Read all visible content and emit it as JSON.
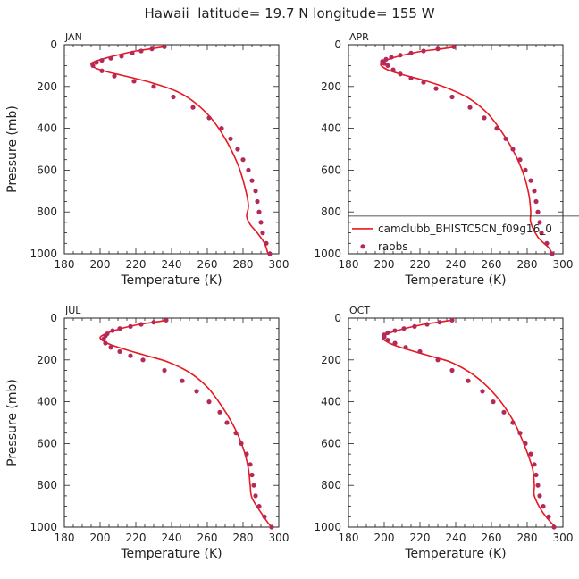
{
  "title": "Hawaii  latitude= 19.7 N longitude= 155 W",
  "colors": {
    "model": "#e8191f",
    "obs": "#b5285a"
  },
  "chart_data": [
    {
      "type": "line+scatter",
      "panel": "JAN",
      "xlabel": "Temperature (K)",
      "ylabel": "Pressure (mb)",
      "xlim": [
        180,
        300
      ],
      "ylim": [
        1000,
        0
      ],
      "xticks": [
        180,
        200,
        220,
        240,
        260,
        280,
        300
      ],
      "yticks": [
        0,
        200,
        400,
        600,
        800,
        1000
      ],
      "model": [
        [
          236,
          10
        ],
        [
          228,
          20
        ],
        [
          220,
          30
        ],
        [
          212,
          45
        ],
        [
          205,
          60
        ],
        [
          199,
          75
        ],
        [
          195,
          90
        ],
        [
          197,
          110
        ],
        [
          204,
          130
        ],
        [
          214,
          150
        ],
        [
          228,
          180
        ],
        [
          242,
          220
        ],
        [
          252,
          270
        ],
        [
          262,
          350
        ],
        [
          270,
          450
        ],
        [
          277,
          570
        ],
        [
          281,
          680
        ],
        [
          283,
          770
        ],
        [
          282,
          820
        ],
        [
          284,
          860
        ],
        [
          288,
          900
        ],
        [
          292,
          950
        ],
        [
          294,
          1000
        ]
      ],
      "obs": [
        [
          236,
          10
        ],
        [
          229,
          20
        ],
        [
          223,
          30
        ],
        [
          218,
          40
        ],
        [
          212,
          55
        ],
        [
          206,
          65
        ],
        [
          201,
          75
        ],
        [
          198,
          85
        ],
        [
          196,
          100
        ],
        [
          201,
          125
        ],
        [
          208,
          150
        ],
        [
          219,
          175
        ],
        [
          230,
          200
        ],
        [
          241,
          250
        ],
        [
          252,
          300
        ],
        [
          261,
          350
        ],
        [
          268,
          400
        ],
        [
          273,
          450
        ],
        [
          277,
          500
        ],
        [
          280,
          550
        ],
        [
          283,
          600
        ],
        [
          285,
          650
        ],
        [
          287,
          700
        ],
        [
          288,
          750
        ],
        [
          289,
          800
        ],
        [
          290,
          850
        ],
        [
          291,
          900
        ],
        [
          293,
          950
        ],
        [
          295,
          1000
        ]
      ]
    },
    {
      "type": "line+scatter",
      "panel": "APR",
      "xlabel": "Temperature (K)",
      "ylabel": "",
      "xlim": [
        180,
        300
      ],
      "ylim": [
        1000,
        0
      ],
      "xticks": [
        180,
        200,
        220,
        240,
        260,
        280,
        300
      ],
      "yticks": [
        0,
        200,
        400,
        600,
        800,
        1000
      ],
      "model": [
        [
          240,
          10
        ],
        [
          232,
          20
        ],
        [
          222,
          30
        ],
        [
          213,
          45
        ],
        [
          206,
          60
        ],
        [
          201,
          75
        ],
        [
          198,
          95
        ],
        [
          202,
          120
        ],
        [
          211,
          145
        ],
        [
          222,
          170
        ],
        [
          236,
          210
        ],
        [
          248,
          260
        ],
        [
          258,
          330
        ],
        [
          266,
          420
        ],
        [
          273,
          520
        ],
        [
          278,
          620
        ],
        [
          281,
          720
        ],
        [
          282,
          800
        ],
        [
          282,
          850
        ],
        [
          286,
          920
        ],
        [
          292,
          970
        ],
        [
          294,
          1000
        ]
      ],
      "obs": [
        [
          239,
          10
        ],
        [
          230,
          20
        ],
        [
          222,
          30
        ],
        [
          215,
          40
        ],
        [
          209,
          50
        ],
        [
          204,
          60
        ],
        [
          201,
          70
        ],
        [
          199,
          80
        ],
        [
          200,
          90
        ],
        [
          202,
          100
        ],
        [
          205,
          120
        ],
        [
          209,
          140
        ],
        [
          215,
          160
        ],
        [
          222,
          180
        ],
        [
          229,
          210
        ],
        [
          238,
          250
        ],
        [
          248,
          300
        ],
        [
          256,
          350
        ],
        [
          263,
          400
        ],
        [
          268,
          450
        ],
        [
          272,
          500
        ],
        [
          276,
          550
        ],
        [
          279,
          600
        ],
        [
          282,
          650
        ],
        [
          284,
          700
        ],
        [
          285,
          750
        ],
        [
          286,
          800
        ],
        [
          287,
          850
        ],
        [
          288,
          900
        ],
        [
          291,
          950
        ],
        [
          294,
          1000
        ]
      ]
    },
    {
      "type": "line+scatter",
      "panel": "JUL",
      "xlabel": "Temperature (K)",
      "ylabel": "Pressure (mb)",
      "xlim": [
        180,
        300
      ],
      "ylim": [
        1000,
        0
      ],
      "xticks": [
        180,
        200,
        220,
        240,
        260,
        280,
        300
      ],
      "yticks": [
        0,
        200,
        400,
        600,
        800,
        1000
      ],
      "model": [
        [
          238,
          10
        ],
        [
          230,
          20
        ],
        [
          222,
          30
        ],
        [
          214,
          45
        ],
        [
          208,
          60
        ],
        [
          203,
          75
        ],
        [
          200,
          95
        ],
        [
          204,
          120
        ],
        [
          212,
          145
        ],
        [
          224,
          175
        ],
        [
          238,
          210
        ],
        [
          250,
          260
        ],
        [
          260,
          330
        ],
        [
          268,
          420
        ],
        [
          275,
          520
        ],
        [
          280,
          620
        ],
        [
          283,
          720
        ],
        [
          284,
          800
        ],
        [
          285,
          860
        ],
        [
          290,
          930
        ],
        [
          294,
          980
        ],
        [
          296,
          1000
        ]
      ],
      "obs": [
        [
          237,
          10
        ],
        [
          230,
          20
        ],
        [
          223,
          30
        ],
        [
          217,
          40
        ],
        [
          211,
          50
        ],
        [
          207,
          60
        ],
        [
          204,
          75
        ],
        [
          203,
          85
        ],
        [
          202,
          100
        ],
        [
          203,
          120
        ],
        [
          206,
          140
        ],
        [
          211,
          160
        ],
        [
          217,
          180
        ],
        [
          224,
          200
        ],
        [
          236,
          250
        ],
        [
          246,
          300
        ],
        [
          254,
          350
        ],
        [
          261,
          400
        ],
        [
          267,
          450
        ],
        [
          271,
          500
        ],
        [
          276,
          550
        ],
        [
          279,
          600
        ],
        [
          282,
          650
        ],
        [
          284,
          700
        ],
        [
          285,
          750
        ],
        [
          286,
          800
        ],
        [
          287,
          850
        ],
        [
          289,
          900
        ],
        [
          292,
          950
        ],
        [
          296,
          1000
        ]
      ]
    },
    {
      "type": "line+scatter",
      "panel": "OCT",
      "xlabel": "Temperature (K)",
      "ylabel": "",
      "xlim": [
        180,
        300
      ],
      "ylim": [
        1000,
        0
      ],
      "xticks": [
        180,
        200,
        220,
        240,
        260,
        280,
        300
      ],
      "yticks": [
        0,
        200,
        400,
        600,
        800,
        1000
      ],
      "model": [
        [
          238,
          10
        ],
        [
          230,
          20
        ],
        [
          222,
          30
        ],
        [
          214,
          45
        ],
        [
          207,
          60
        ],
        [
          202,
          75
        ],
        [
          199,
          95
        ],
        [
          203,
          120
        ],
        [
          211,
          145
        ],
        [
          223,
          175
        ],
        [
          237,
          210
        ],
        [
          248,
          260
        ],
        [
          258,
          330
        ],
        [
          267,
          420
        ],
        [
          274,
          520
        ],
        [
          279,
          620
        ],
        [
          283,
          720
        ],
        [
          284,
          800
        ],
        [
          284,
          850
        ],
        [
          288,
          920
        ],
        [
          293,
          975
        ],
        [
          296,
          1000
        ]
      ],
      "obs": [
        [
          238,
          10
        ],
        [
          231,
          20
        ],
        [
          224,
          30
        ],
        [
          217,
          40
        ],
        [
          211,
          50
        ],
        [
          206,
          60
        ],
        [
          202,
          70
        ],
        [
          200,
          80
        ],
        [
          200,
          90
        ],
        [
          202,
          105
        ],
        [
          206,
          120
        ],
        [
          212,
          140
        ],
        [
          220,
          160
        ],
        [
          230,
          200
        ],
        [
          238,
          250
        ],
        [
          247,
          300
        ],
        [
          255,
          350
        ],
        [
          261,
          400
        ],
        [
          267,
          450
        ],
        [
          272,
          500
        ],
        [
          276,
          550
        ],
        [
          279,
          600
        ],
        [
          282,
          650
        ],
        [
          284,
          700
        ],
        [
          285,
          750
        ],
        [
          286,
          800
        ],
        [
          287,
          850
        ],
        [
          289,
          900
        ],
        [
          292,
          950
        ],
        [
          295,
          1000
        ]
      ]
    }
  ],
  "legend": {
    "panel": "APR",
    "entries": [
      {
        "label": "camclubb_BHISTC5CN_f09g16_0",
        "kind": "line"
      },
      {
        "label": "raobs",
        "kind": "marker"
      }
    ]
  }
}
